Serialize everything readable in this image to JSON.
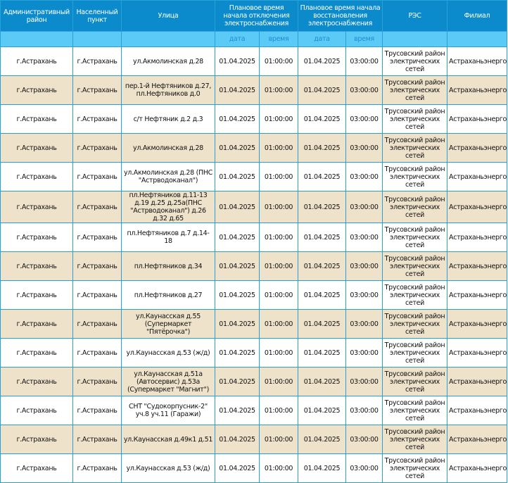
{
  "headers": {
    "district": "Административный район",
    "locality": "Населенный пункт",
    "street": "Улица",
    "off": "Плановое время начала отключения электроснабжения",
    "on": "Плановое время начала восстановления электроснабжения",
    "res": "РЭС",
    "branch": "Филиал",
    "date": "дата",
    "time": "время"
  },
  "rows": [
    [
      "г.Астрахань",
      "г.Астрахань",
      "ул.Акмолинская д.28",
      "01.04.2025",
      "01:00:00",
      "01.04.2025",
      "03:00:00",
      "Трусовский район электрических сетей",
      "Астраханьэнерго"
    ],
    [
      "г.Астрахань",
      "г.Астрахань",
      "пер.1-й Нефтяников д.27, пл.Нефтяников д.0",
      "01.04.2025",
      "01:00:00",
      "01.04.2025",
      "03:00:00",
      "Трусовский район электрических сетей",
      "Астраханьэнерго"
    ],
    [
      "г.Астрахань",
      "г.Астрахань",
      "с/т Нефтяник д.2 д.3",
      "01.04.2025",
      "01:00:00",
      "01.04.2025",
      "03:00:00",
      "Трусовский район электрических сетей",
      "Астраханьэнерго"
    ],
    [
      "г.Астрахань",
      "г.Астрахань",
      "ул.Акмолинская д.28",
      "01.04.2025",
      "01:00:00",
      "01.04.2025",
      "03:00:00",
      "Трусовский район электрических сетей",
      "Астраханьэнерго"
    ],
    [
      "г.Астрахань",
      "г.Астрахань",
      "ул.Акмолинская д.28 (ПНС \"Астрводоканал\")",
      "01.04.2025",
      "01:00:00",
      "01.04.2025",
      "03:00:00",
      "Трусовский район электрических сетей",
      "Астраханьэнерго"
    ],
    [
      "г.Астрахань",
      "г.Астрахань",
      "пл.Нефтяников д.11-13 д.19 д.25 д.25а(ПНС \"Астрводоканал\") д.26 д.32 д.65",
      "01.04.2025",
      "01:00:00",
      "01.04.2025",
      "03:00:00",
      "Трусовский район электрических сетей",
      "Астраханьэнерго"
    ],
    [
      "г.Астрахань",
      "г.Астрахань",
      "пл.Нефтяников д.7 д.14-18",
      "01.04.2025",
      "01:00:00",
      "01.04.2025",
      "03:00:00",
      "Трусовский район электрических сетей",
      "Астраханьэнерго"
    ],
    [
      "г.Астрахань",
      "г.Астрахань",
      "пл.Нефтяников д.34",
      "01.04.2025",
      "01:00:00",
      "01.04.2025",
      "03:00:00",
      "Трусовский район электрических сетей",
      "Астраханьэнерго"
    ],
    [
      "г.Астрахань",
      "г.Астрахань",
      "пл.Нефтяников д.27",
      "01.04.2025",
      "01:00:00",
      "01.04.2025",
      "03:00:00",
      "Трусовский район электрических сетей",
      "Астраханьэнерго"
    ],
    [
      "г.Астрахань",
      "г.Астрахань",
      "ул.Каунасская д.55 (Супермаркет \"Пятёрочка\")",
      "01.04.2025",
      "01:00:00",
      "01.04.2025",
      "03:00:00",
      "Трусовский район электрических сетей",
      "Астраханьэнерго"
    ],
    [
      "г.Астрахань",
      "г.Астрахань",
      "ул.Каунасская д.53 (ж/д)",
      "01.04.2025",
      "01:00:00",
      "01.04.2025",
      "03:00:00",
      "Трусовский район электрических сетей",
      "Астраханьэнерго"
    ],
    [
      "г.Астрахань",
      "г.Астрахань",
      "ул.Каунасская д.51а (Автосервис) д.53а (Супермаркет \"Магнит\")",
      "01.04.2025",
      "01:00:00",
      "01.04.2025",
      "03:00:00",
      "Трусовский район электрических сетей",
      "Астраханьэнерго"
    ],
    [
      "г.Астрахань",
      "г.Астрахань",
      "СНТ \"Судокорпусник-2\" уч.8 уч.11 (Гаражи)",
      "01.04.2025",
      "01:00:00",
      "01.04.2025",
      "03:00:00",
      "Трусовский район электрических сетей",
      "Астраханьэнерго"
    ],
    [
      "г.Астрахань",
      "г.Астрахань",
      "ул.Каунасская д.49к1 д.51",
      "01.04.2025",
      "01:00:00",
      "01.04.2025",
      "03:00:00",
      "Трусовский район электрических сетей",
      "Астраханьэнерго"
    ],
    [
      "г.Астрахань",
      "г.Астрахань",
      "ул.Каунасская д.53 (ж/д)",
      "01.04.2025",
      "01:00:00",
      "01.04.2025",
      "03:00:00",
      "Трусовский район электрических сетей",
      "Астраханьэнерго"
    ]
  ]
}
